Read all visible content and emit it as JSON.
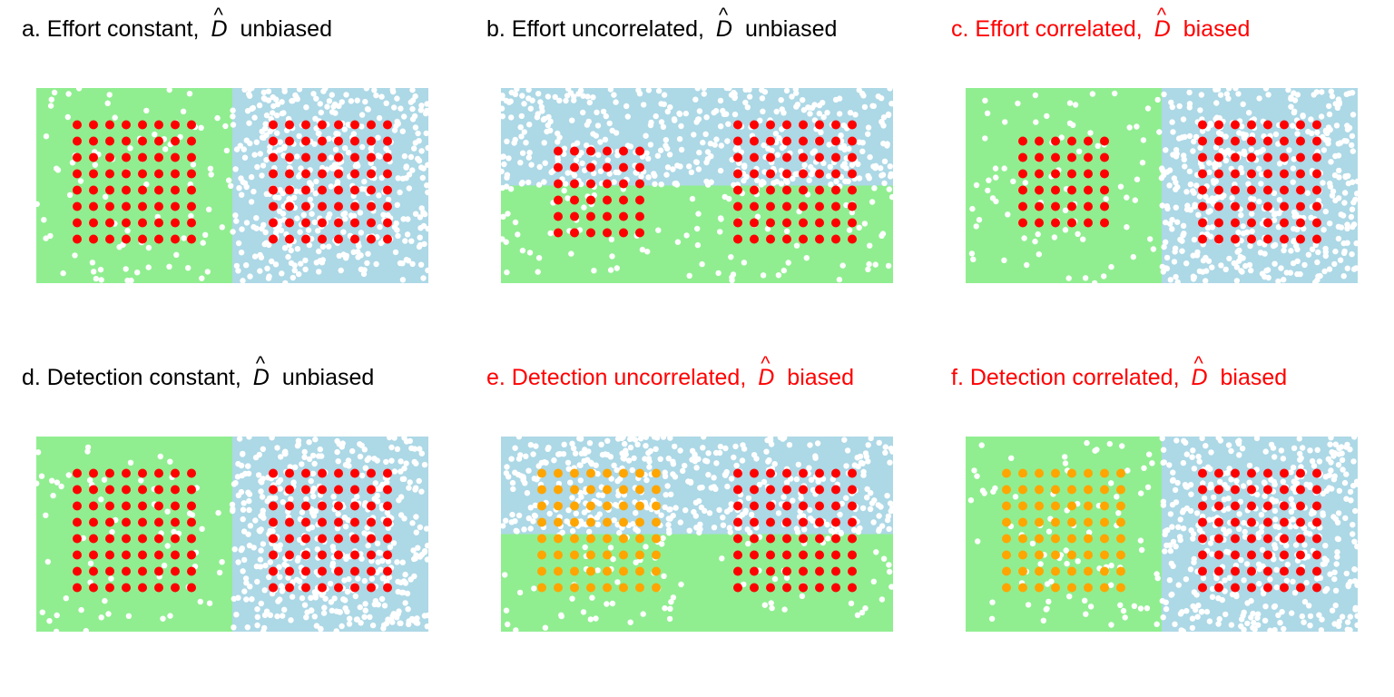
{
  "colors": {
    "green_habitat": "#90ee90",
    "blue_habitat": "#add8e6",
    "animal": "#ffffff",
    "detector_normal": "#ff0000",
    "detector_low_detection": "#ffa500",
    "title_biased": "#ff0000",
    "title_unbiased": "#000000"
  },
  "panels": [
    {
      "id": "a",
      "prefix": "a. Effort constant,",
      "symbol": "D",
      "suffix": "unbiased",
      "biased": false,
      "layout": "vertical",
      "grids": [
        {
          "side": "left",
          "size": 8,
          "detection": "normal"
        },
        {
          "side": "right",
          "size": 8,
          "detection": "normal"
        }
      ]
    },
    {
      "id": "b",
      "prefix": "b. Effort uncorrelated,",
      "symbol": "D",
      "suffix": "unbiased",
      "biased": false,
      "layout": "horizontal",
      "grids": [
        {
          "side": "left",
          "size": 6,
          "detection": "normal"
        },
        {
          "side": "right",
          "size": 8,
          "detection": "normal"
        }
      ]
    },
    {
      "id": "c",
      "prefix": "c. Effort correlated,",
      "symbol": "D",
      "suffix": "biased",
      "biased": true,
      "layout": "vertical",
      "grids": [
        {
          "side": "left",
          "size": 6,
          "detection": "normal"
        },
        {
          "side": "right",
          "size": 8,
          "detection": "normal"
        }
      ]
    },
    {
      "id": "d",
      "prefix": "d. Detection constant,",
      "symbol": "D",
      "suffix": "unbiased",
      "biased": false,
      "layout": "vertical",
      "grids": [
        {
          "side": "left",
          "size": 8,
          "detection": "normal"
        },
        {
          "side": "right",
          "size": 8,
          "detection": "normal"
        }
      ]
    },
    {
      "id": "e",
      "prefix": "e. Detection uncorrelated,",
      "symbol": "D",
      "suffix": "biased",
      "biased": true,
      "layout": "horizontal",
      "grids": [
        {
          "side": "left",
          "size": 8,
          "detection": "low"
        },
        {
          "side": "right",
          "size": 8,
          "detection": "normal"
        }
      ]
    },
    {
      "id": "f",
      "prefix": "f. Detection correlated,",
      "symbol": "D",
      "suffix": "biased",
      "biased": true,
      "layout": "vertical",
      "grids": [
        {
          "side": "left",
          "size": 8,
          "detection": "low"
        },
        {
          "side": "right",
          "size": 8,
          "detection": "normal"
        }
      ]
    }
  ]
}
